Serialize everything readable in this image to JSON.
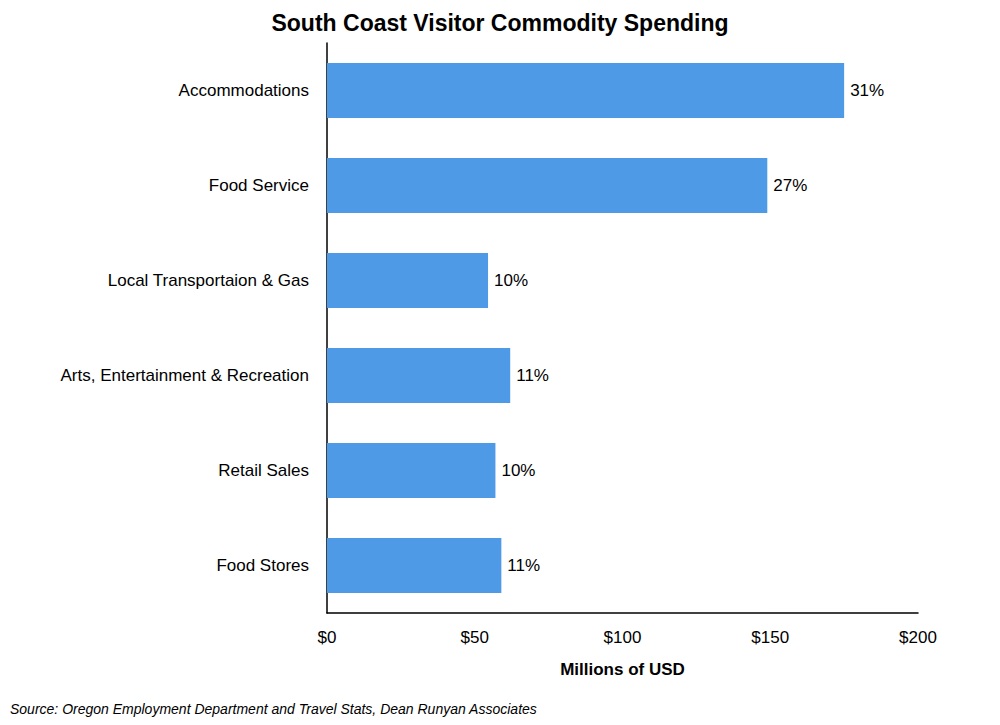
{
  "chart_data": {
    "type": "bar",
    "orientation": "horizontal",
    "title": "South Coast Visitor Commodity Spending",
    "x_label": "Millions of USD",
    "source": "Source: Oregon Employment Department and Travel Stats, Dean Runyan Associates",
    "categories": [
      "Accommodations",
      "Food Service",
      "Local Transportaion & Gas",
      "Arts, Entertainment & Recreation",
      "Retail Sales",
      "Food Stores"
    ],
    "values": [
      175,
      149,
      54.5,
      62,
      57,
      59
    ],
    "share_labels": [
      "31%",
      "27%",
      "10%",
      "11%",
      "10%",
      "11%"
    ],
    "color": "#4f9ae6",
    "xlim": [
      0,
      200
    ],
    "xticks": [
      {
        "value": 0,
        "label": "$0"
      },
      {
        "value": 50,
        "label": "$50"
      },
      {
        "value": 100,
        "label": "$100"
      },
      {
        "value": 150,
        "label": "$150"
      },
      {
        "value": 200,
        "label": "$200"
      }
    ],
    "grid": false
  }
}
